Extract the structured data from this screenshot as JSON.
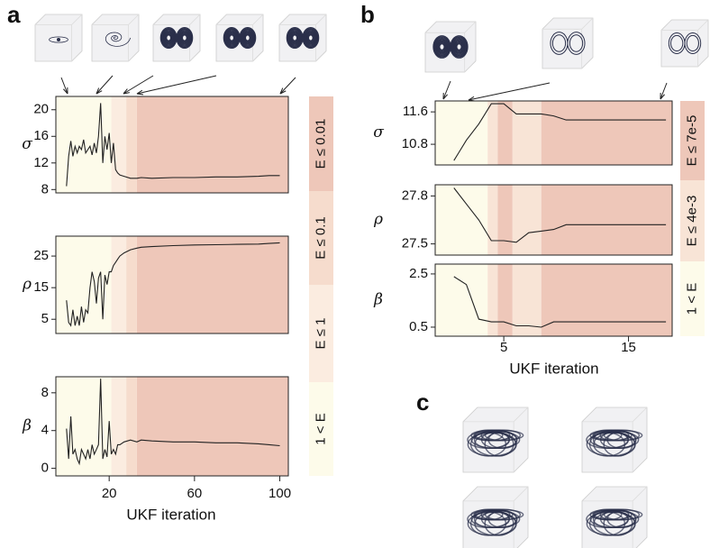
{
  "chart_data": [
    {
      "type": "line",
      "label": "a",
      "xlabel": "UKF iteration",
      "xlim": [
        -5,
        104
      ],
      "xticks": [
        20,
        60,
        100
      ],
      "x": [
        0,
        1,
        2,
        3,
        4,
        5,
        6,
        7,
        8,
        9,
        10,
        11,
        12,
        13,
        14,
        15,
        16,
        17,
        18,
        19,
        20,
        21,
        22,
        23,
        24,
        25,
        27,
        30,
        33,
        35,
        40,
        50,
        60,
        70,
        80,
        90,
        95,
        100
      ],
      "panels": [
        {
          "ylabel": "σ",
          "ylim": [
            7.5,
            22
          ],
          "yticks": [
            8,
            12,
            16,
            20
          ],
          "values": [
            8.5,
            13,
            15.3,
            13,
            14.5,
            13.5,
            14.5,
            14,
            15.5,
            13.5,
            14,
            14.5,
            13.2,
            15,
            13.5,
            16,
            21,
            12,
            16,
            14,
            16.5,
            12,
            15,
            11,
            10.5,
            10.2,
            10,
            9.7,
            9.7,
            9.8,
            9.7,
            9.8,
            9.8,
            9.9,
            9.9,
            10,
            10.1,
            10.1
          ]
        },
        {
          "ylabel": "ρ",
          "ylim": [
            0.5,
            31.3
          ],
          "yticks": [
            5,
            15,
            25
          ],
          "values": [
            11,
            4,
            3,
            8,
            3,
            6,
            3,
            9,
            4,
            8,
            7,
            15,
            20,
            17,
            10,
            18,
            20,
            5,
            19,
            16,
            20,
            20,
            22,
            23,
            24,
            25,
            26,
            27,
            27.5,
            27.8,
            28,
            28.3,
            28.5,
            28.6,
            28.7,
            28.8,
            29,
            29.2
          ]
        },
        {
          "ylabel": "β",
          "ylim": [
            -0.8,
            9.7
          ],
          "yticks": [
            0,
            4,
            8
          ],
          "values": [
            4.2,
            1,
            5.5,
            1.5,
            2,
            1,
            0.5,
            2,
            1.5,
            1,
            2,
            1,
            2.5,
            1.5,
            2,
            2.5,
            9.5,
            1,
            2,
            1.2,
            5,
            1.5,
            2,
            1.5,
            2.5,
            2.5,
            2.8,
            3,
            2.8,
            3,
            2.9,
            2.8,
            2.8,
            2.7,
            2.7,
            2.6,
            2.5,
            2.4
          ]
        }
      ],
      "bands": [
        {
          "name": "E ≤ 0.01",
          "color": "#eec7b9",
          "spans": [
            [
              33,
              104
            ]
          ]
        },
        {
          "name": "E ≤ 0.1",
          "color": "#f6dccd",
          "spans": [
            [
              28,
              33
            ]
          ]
        },
        {
          "name": "E ≤ 1",
          "color": "#fbece0",
          "spans": [
            [
              21,
              28
            ]
          ]
        },
        {
          "name": "1 < E",
          "color": "#fdfbea",
          "spans": [
            [
              -5,
              21
            ]
          ]
        }
      ]
    },
    {
      "type": "line",
      "label": "b",
      "xlabel": "UKF iteration",
      "xlim": [
        -0.5,
        18.5
      ],
      "xticks": [
        5,
        15
      ],
      "x": [
        1,
        2,
        3,
        4,
        5,
        6,
        7,
        8,
        9,
        10,
        11,
        12,
        13,
        14,
        15,
        16,
        17,
        18
      ],
      "panels": [
        {
          "ylabel": "σ",
          "ylim": [
            10.29,
            11.87
          ],
          "yticks": [
            10.8,
            11.6
          ],
          "values": [
            10.4,
            10.9,
            11.3,
            11.8,
            11.8,
            11.55,
            11.55,
            11.55,
            11.5,
            11.4,
            11.4,
            11.4,
            11.4,
            11.4,
            11.4,
            11.4,
            11.4,
            11.4
          ]
        },
        {
          "ylabel": "ρ",
          "ylim": [
            27.43,
            27.87
          ],
          "yticks": [
            27.8,
            27.5
          ],
          "values": [
            27.85,
            27.75,
            27.65,
            27.52,
            27.52,
            27.51,
            27.57,
            27.58,
            27.59,
            27.62,
            27.62,
            27.62,
            27.62,
            27.62,
            27.62,
            27.62,
            27.62,
            27.62
          ]
        },
        {
          "ylabel": "β",
          "ylim": [
            0.16,
            2.87
          ],
          "yticks": [
            2.5,
            0.5
          ],
          "values": [
            2.4,
            2.1,
            0.8,
            0.7,
            0.7,
            0.55,
            0.55,
            0.5,
            0.7,
            0.7,
            0.7,
            0.7,
            0.7,
            0.7,
            0.7,
            0.7,
            0.7,
            0.7
          ]
        }
      ],
      "bands": [
        {
          "name": "E ≤ 7e-5",
          "color": "#eec7b9",
          "spans": [
            [
              4.5,
              5.7
            ],
            [
              8,
              18.5
            ]
          ]
        },
        {
          "name": "E ≤ 4e-3",
          "color": "#f8e4d6",
          "spans": [
            [
              3.7,
              4.5
            ],
            [
              5.7,
              8
            ]
          ]
        },
        {
          "name": "1 < E",
          "color": "#fdfbea",
          "spans": [
            [
              -0.5,
              3.7
            ]
          ]
        }
      ]
    }
  ],
  "panel_c": {
    "label": "c"
  }
}
